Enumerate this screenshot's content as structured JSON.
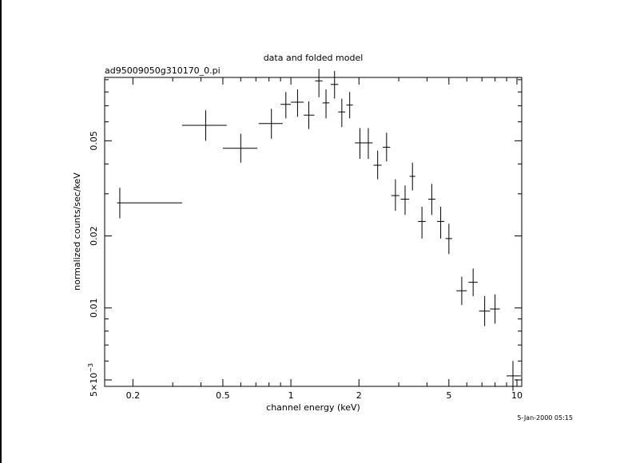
{
  "chart_data": {
    "type": "scatter",
    "title": "data and folded model",
    "subtitle": "ad95009050g310170_0.pi",
    "xlabel": "channel energy (keV)",
    "ylabel": "normalized counts/sec/keV",
    "timestamp": "5-Jan-2000 05:15",
    "x_scale": "log",
    "y_scale": "log",
    "xlim": [
      0.15,
      10.5
    ],
    "ylim": [
      0.0047,
      0.092
    ],
    "x_ticks": [
      {
        "value": 0.2,
        "label": "0.2"
      },
      {
        "value": 0.5,
        "label": "0.5"
      },
      {
        "value": 1,
        "label": "1"
      },
      {
        "value": 2,
        "label": "2"
      },
      {
        "value": 5,
        "label": "5"
      },
      {
        "value": 10,
        "label": "10"
      }
    ],
    "y_ticks": [
      {
        "value": 0.005,
        "label": "5×10",
        "exp": "−3"
      },
      {
        "value": 0.01,
        "label": "0.01"
      },
      {
        "value": 0.02,
        "label": "0.02"
      },
      {
        "value": 0.05,
        "label": "0.05"
      }
    ],
    "grid": false,
    "series": [
      {
        "points": [
          {
            "x": 0.175,
            "xlo": 0.17,
            "xhi": 0.33,
            "y": 0.0275,
            "ylo": 0.0237,
            "yhi": 0.0318
          },
          {
            "x": 0.42,
            "xlo": 0.33,
            "xhi": 0.52,
            "y": 0.058,
            "ylo": 0.05,
            "yhi": 0.067
          },
          {
            "x": 0.6,
            "xlo": 0.5,
            "xhi": 0.71,
            "y": 0.0465,
            "ylo": 0.0405,
            "yhi": 0.0535
          },
          {
            "x": 0.82,
            "xlo": 0.72,
            "xhi": 0.92,
            "y": 0.059,
            "ylo": 0.051,
            "yhi": 0.068
          },
          {
            "x": 0.95,
            "xlo": 0.9,
            "xhi": 1.0,
            "y": 0.071,
            "ylo": 0.062,
            "yhi": 0.08
          },
          {
            "x": 1.07,
            "xlo": 1.0,
            "xhi": 1.14,
            "y": 0.0725,
            "ylo": 0.063,
            "yhi": 0.082
          },
          {
            "x": 1.2,
            "xlo": 1.14,
            "xhi": 1.27,
            "y": 0.064,
            "ylo": 0.056,
            "yhi": 0.073
          },
          {
            "x": 1.33,
            "xlo": 1.28,
            "xhi": 1.38,
            "y": 0.089,
            "ylo": 0.076,
            "yhi": 0.1
          },
          {
            "x": 1.43,
            "xlo": 1.38,
            "xhi": 1.48,
            "y": 0.072,
            "ylo": 0.062,
            "yhi": 0.082
          },
          {
            "x": 1.56,
            "xlo": 1.5,
            "xhi": 1.62,
            "y": 0.086,
            "ylo": 0.075,
            "yhi": 0.098
          },
          {
            "x": 1.68,
            "xlo": 1.62,
            "xhi": 1.74,
            "y": 0.066,
            "ylo": 0.057,
            "yhi": 0.075
          },
          {
            "x": 1.82,
            "xlo": 1.76,
            "xhi": 1.88,
            "y": 0.0705,
            "ylo": 0.062,
            "yhi": 0.08
          },
          {
            "x": 2.02,
            "xlo": 1.92,
            "xhi": 2.12,
            "y": 0.049,
            "ylo": 0.042,
            "yhi": 0.0565
          },
          {
            "x": 2.2,
            "xlo": 2.1,
            "xhi": 2.3,
            "y": 0.049,
            "ylo": 0.042,
            "yhi": 0.0565
          },
          {
            "x": 2.42,
            "xlo": 2.32,
            "xhi": 2.52,
            "y": 0.0395,
            "ylo": 0.0345,
            "yhi": 0.0455
          },
          {
            "x": 2.65,
            "xlo": 2.55,
            "xhi": 2.75,
            "y": 0.047,
            "ylo": 0.041,
            "yhi": 0.054
          },
          {
            "x": 2.9,
            "xlo": 2.78,
            "xhi": 3.02,
            "y": 0.0295,
            "ylo": 0.0255,
            "yhi": 0.0345
          },
          {
            "x": 3.2,
            "xlo": 3.06,
            "xhi": 3.34,
            "y": 0.0285,
            "ylo": 0.0245,
            "yhi": 0.0325
          },
          {
            "x": 3.45,
            "xlo": 3.35,
            "xhi": 3.55,
            "y": 0.0355,
            "ylo": 0.031,
            "yhi": 0.0405
          },
          {
            "x": 3.8,
            "xlo": 3.65,
            "xhi": 3.95,
            "y": 0.023,
            "ylo": 0.0195,
            "yhi": 0.0265
          },
          {
            "x": 4.2,
            "xlo": 4.05,
            "xhi": 4.35,
            "y": 0.0285,
            "ylo": 0.0245,
            "yhi": 0.033
          },
          {
            "x": 4.6,
            "xlo": 4.43,
            "xhi": 4.77,
            "y": 0.023,
            "ylo": 0.0195,
            "yhi": 0.0265
          },
          {
            "x": 5.0,
            "xlo": 4.83,
            "xhi": 5.17,
            "y": 0.0195,
            "ylo": 0.0168,
            "yhi": 0.0225
          },
          {
            "x": 5.7,
            "xlo": 5.4,
            "xhi": 6.0,
            "y": 0.0118,
            "ylo": 0.0103,
            "yhi": 0.0135
          },
          {
            "x": 6.4,
            "xlo": 6.1,
            "xhi": 6.7,
            "y": 0.0128,
            "ylo": 0.0112,
            "yhi": 0.0146
          },
          {
            "x": 7.2,
            "xlo": 6.8,
            "xhi": 7.6,
            "y": 0.0097,
            "ylo": 0.0084,
            "yhi": 0.0112
          },
          {
            "x": 8.0,
            "xlo": 7.6,
            "xhi": 8.4,
            "y": 0.0099,
            "ylo": 0.0086,
            "yhi": 0.0114
          },
          {
            "x": 9.6,
            "xlo": 9.0,
            "xhi": 10.4,
            "y": 0.0052,
            "ylo": 0.0045,
            "yhi": 0.006
          }
        ]
      }
    ]
  }
}
